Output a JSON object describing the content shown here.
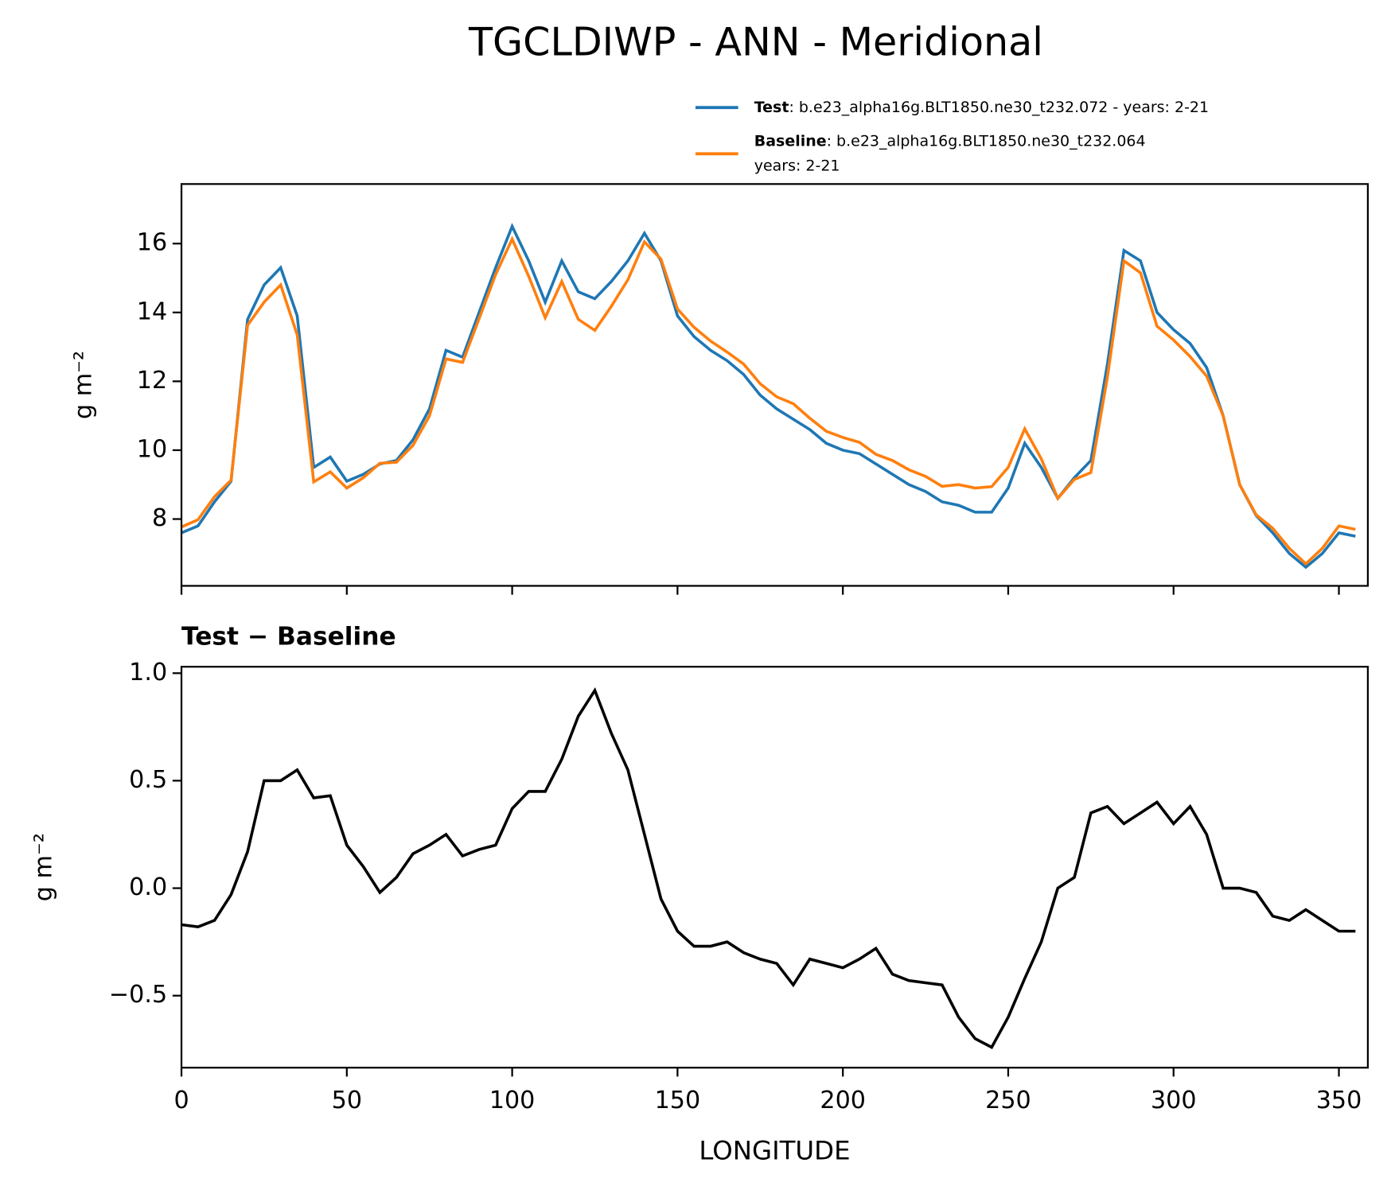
{
  "title": "TGCLDIWP - ANN - Meridional",
  "chart_data": [
    {
      "type": "line",
      "ylabel": "g m⁻²",
      "x": [
        0,
        5,
        10,
        15,
        20,
        25,
        30,
        35,
        40,
        45,
        50,
        55,
        60,
        65,
        70,
        75,
        80,
        85,
        90,
        95,
        100,
        105,
        110,
        115,
        120,
        125,
        130,
        135,
        140,
        145,
        150,
        155,
        160,
        165,
        170,
        175,
        180,
        185,
        190,
        195,
        200,
        205,
        210,
        215,
        220,
        225,
        230,
        235,
        240,
        245,
        250,
        255,
        260,
        265,
        270,
        275,
        280,
        285,
        290,
        295,
        300,
        305,
        310,
        315,
        320,
        325,
        330,
        335,
        340,
        345,
        350,
        355
      ],
      "series": [
        {
          "name": "Test",
          "description": ": b.e23_alpha16g.BLT1850.ne30_t232.072 - years: 2-21",
          "color": "#1f77b4",
          "values": [
            7.6,
            7.8,
            8.5,
            9.1,
            13.8,
            14.8,
            15.3,
            13.9,
            9.5,
            9.8,
            9.1,
            9.3,
            9.6,
            9.7,
            10.3,
            11.2,
            12.9,
            12.7,
            14.0,
            15.3,
            16.5,
            15.5,
            14.3,
            15.5,
            14.6,
            14.4,
            14.9,
            15.5,
            16.3,
            15.5,
            13.9,
            13.3,
            12.9,
            12.6,
            12.2,
            11.6,
            11.2,
            10.9,
            10.6,
            10.2,
            10.0,
            9.9,
            9.6,
            9.3,
            9.0,
            8.8,
            8.5,
            8.4,
            8.2,
            8.2,
            8.9,
            10.2,
            9.5,
            8.6,
            9.2,
            9.7,
            12.5,
            15.8,
            15.5,
            14.0,
            13.5,
            13.1,
            12.4,
            11.0,
            9.0,
            8.1,
            7.6,
            7.0,
            6.6,
            7.0,
            7.6,
            7.5
          ]
        },
        {
          "name": "Baseline",
          "description": ": b.e23_alpha16g.BLT1850.ne30_t232.064",
          "description2": "years: 2-21",
          "color": "#ff7f0e",
          "values": [
            7.77,
            7.98,
            8.65,
            9.13,
            13.63,
            14.3,
            14.8,
            13.35,
            9.08,
            9.37,
            8.9,
            9.2,
            9.62,
            9.65,
            10.14,
            11.0,
            12.65,
            12.55,
            13.82,
            15.1,
            16.13,
            15.05,
            13.85,
            14.9,
            13.8,
            13.48,
            14.18,
            14.95,
            16.05,
            15.55,
            14.1,
            13.57,
            13.17,
            12.85,
            12.5,
            11.93,
            11.55,
            11.35,
            10.93,
            10.55,
            10.37,
            10.23,
            9.88,
            9.7,
            9.43,
            9.24,
            8.95,
            9.0,
            8.9,
            8.94,
            9.5,
            10.62,
            9.75,
            8.6,
            9.15,
            9.35,
            12.12,
            15.5,
            15.15,
            13.6,
            13.2,
            12.72,
            12.15,
            11.0,
            9.0,
            8.12,
            7.73,
            7.15,
            6.7,
            7.15,
            7.8,
            7.7
          ]
        }
      ],
      "xlim": [
        0,
        358.75
      ],
      "ylim": [
        6.06,
        17.73
      ],
      "yticks": [
        8,
        10,
        12,
        14,
        16
      ]
    },
    {
      "type": "line",
      "title": "Test − Baseline",
      "ylabel": "g m⁻²",
      "xlabel": "LONGITUDE",
      "x": [
        0,
        5,
        10,
        15,
        20,
        25,
        30,
        35,
        40,
        45,
        50,
        55,
        60,
        65,
        70,
        75,
        80,
        85,
        90,
        95,
        100,
        105,
        110,
        115,
        120,
        125,
        130,
        135,
        140,
        145,
        150,
        155,
        160,
        165,
        170,
        175,
        180,
        185,
        190,
        195,
        200,
        205,
        210,
        215,
        220,
        225,
        230,
        235,
        240,
        245,
        250,
        255,
        260,
        265,
        270,
        275,
        280,
        285,
        290,
        295,
        300,
        305,
        310,
        315,
        320,
        325,
        330,
        335,
        340,
        345,
        350,
        355
      ],
      "series": [
        {
          "color": "#000000",
          "values": [
            -0.17,
            -0.18,
            -0.15,
            -0.03,
            0.17,
            0.5,
            0.5,
            0.55,
            0.42,
            0.43,
            0.2,
            0.1,
            -0.02,
            0.05,
            0.16,
            0.2,
            0.25,
            0.15,
            0.18,
            0.2,
            0.37,
            0.45,
            0.45,
            0.6,
            0.8,
            0.92,
            0.72,
            0.55,
            0.25,
            -0.05,
            -0.2,
            -0.27,
            -0.27,
            -0.25,
            -0.3,
            -0.33,
            -0.35,
            -0.45,
            -0.33,
            -0.35,
            -0.37,
            -0.33,
            -0.28,
            -0.4,
            -0.43,
            -0.44,
            -0.45,
            -0.6,
            -0.7,
            -0.74,
            -0.6,
            -0.42,
            -0.25,
            0.0,
            0.05,
            0.35,
            0.38,
            0.3,
            0.35,
            0.4,
            0.3,
            0.38,
            0.25,
            0.0,
            0.0,
            -0.02,
            -0.13,
            -0.15,
            -0.1,
            -0.15,
            -0.2,
            -0.2
          ]
        }
      ],
      "xlim": [
        0,
        358.75
      ],
      "ylim": [
        -0.835,
        1.03
      ],
      "xticks": [
        0,
        50,
        100,
        150,
        200,
        250,
        300,
        350
      ],
      "yticks": [
        {
          "value": -0.5,
          "label": "−0.5"
        },
        {
          "value": 0,
          "label": "0.0"
        },
        {
          "value": 0.5,
          "label": "0.5"
        },
        {
          "value": 1,
          "label": "1.0"
        }
      ]
    }
  ]
}
